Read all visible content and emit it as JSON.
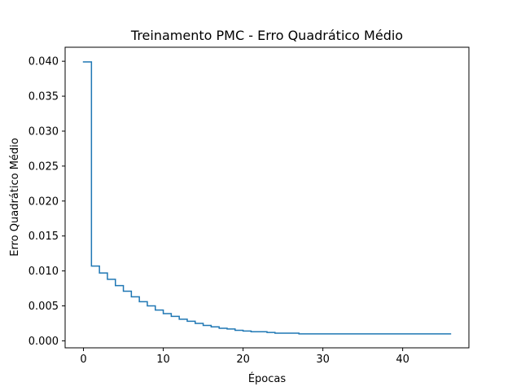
{
  "chart_data": {
    "type": "line",
    "drawstyle": "steps-post",
    "title": "Treinamento PMC - Erro Quadrático Médio",
    "xlabel": "Épocas",
    "ylabel": "Erro Quadrático Médio",
    "xlim": [
      -2.3,
      48.3
    ],
    "ylim": [
      -0.001,
      0.042
    ],
    "xticks": [
      0,
      10,
      20,
      30,
      40
    ],
    "xtick_labels": [
      "0",
      "10",
      "20",
      "30",
      "40"
    ],
    "yticks": [
      0.0,
      0.005,
      0.01,
      0.015,
      0.02,
      0.025,
      0.03,
      0.035,
      0.04
    ],
    "ytick_labels": [
      "0.000",
      "0.005",
      "0.010",
      "0.015",
      "0.020",
      "0.025",
      "0.030",
      "0.035",
      "0.040"
    ],
    "grid": false,
    "legend": "none",
    "series": [
      {
        "color": "#1f77b4",
        "x": [
          0,
          1,
          2,
          3,
          4,
          5,
          6,
          7,
          8,
          9,
          10,
          11,
          12,
          13,
          14,
          15,
          16,
          17,
          18,
          19,
          20,
          21,
          22,
          23,
          24,
          25,
          26,
          27,
          28,
          29,
          30,
          31,
          32,
          33,
          34,
          35,
          36,
          37,
          38,
          39,
          40,
          41,
          42,
          43,
          44,
          45,
          46
        ],
        "y": [
          0.0399,
          0.0107,
          0.0097,
          0.0088,
          0.0079,
          0.0071,
          0.0063,
          0.0056,
          0.005,
          0.0044,
          0.0039,
          0.0035,
          0.0031,
          0.0028,
          0.0025,
          0.0022,
          0.002,
          0.0018,
          0.0017,
          0.0015,
          0.0014,
          0.0013,
          0.0013,
          0.0012,
          0.0011,
          0.0011,
          0.0011,
          0.001,
          0.001,
          0.001,
          0.001,
          0.001,
          0.001,
          0.001,
          0.001,
          0.001,
          0.001,
          0.001,
          0.001,
          0.001,
          0.001,
          0.001,
          0.001,
          0.001,
          0.001,
          0.001,
          0.001
        ]
      }
    ]
  }
}
